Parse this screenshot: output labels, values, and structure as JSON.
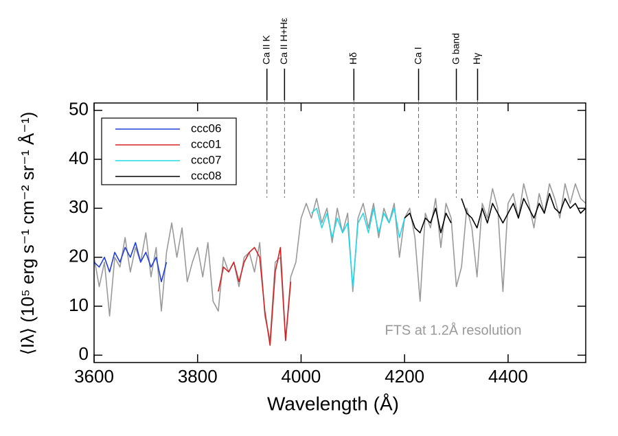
{
  "chart_data": {
    "type": "line",
    "xlabel": "Wavelength (Å)",
    "ylabel": "⟨Iλ⟩ (10⁵ erg s⁻¹ cm⁻² sr⁻¹ Å⁻¹)",
    "xlim": [
      3600,
      4550
    ],
    "xticks": [
      3600,
      3800,
      4000,
      4200,
      4400
    ],
    "ylim": [
      -1.5,
      51.5
    ],
    "yticks": [
      0,
      10,
      20,
      30,
      40,
      50
    ],
    "legend": "upper left",
    "note": "FTS at 1.2Å resolution",
    "lines": [
      {
        "label": "Ca II K",
        "x": 3934
      },
      {
        "label": "Ca II H+Hε",
        "x": 3968
      },
      {
        "label": "Hδ",
        "x": 4102
      },
      {
        "label": "Ca I",
        "x": 4227
      },
      {
        "label": "G band",
        "x": 4300
      },
      {
        "label": "Hγ",
        "x": 4341
      }
    ],
    "series": [
      {
        "color": "#999999",
        "x": [
          3600,
          3610,
          3620,
          3630,
          3640,
          3650,
          3660,
          3670,
          3680,
          3690,
          3700,
          3710,
          3720,
          3730,
          3740,
          3750,
          3760,
          3770,
          3780,
          3790,
          3800,
          3810,
          3820,
          3830,
          3840,
          3850,
          3860,
          3870,
          3880,
          3890,
          3900,
          3910,
          3920,
          3930,
          3940,
          3950,
          3960,
          3970,
          3980,
          3990,
          4000,
          4010,
          4020,
          4030,
          4040,
          4050,
          4060,
          4070,
          4080,
          4090,
          4100,
          4110,
          4120,
          4130,
          4140,
          4150,
          4160,
          4170,
          4180,
          4190,
          4200,
          4210,
          4220,
          4230,
          4240,
          4250,
          4260,
          4270,
          4280,
          4290,
          4300,
          4310,
          4320,
          4330,
          4340,
          4350,
          4360,
          4370,
          4380,
          4390,
          4400,
          4410,
          4420,
          4430,
          4440,
          4450,
          4460,
          4470,
          4480,
          4490,
          4500,
          4510,
          4520,
          4530,
          4540,
          4550
        ],
        "values": [
          20,
          14,
          19,
          8,
          20,
          18,
          24,
          17,
          22,
          19,
          25,
          16,
          22,
          9,
          21,
          27,
          20,
          26,
          15,
          19,
          22,
          16,
          23,
          11,
          9,
          20,
          17,
          19,
          14,
          20,
          21,
          17,
          23,
          8,
          3,
          19,
          20,
          3,
          16,
          19,
          28,
          31,
          28,
          32,
          27,
          30,
          23,
          30,
          25,
          29,
          13,
          28,
          31,
          26,
          31,
          24,
          30,
          27,
          31,
          20,
          28,
          30,
          24,
          11,
          29,
          26,
          32,
          22,
          31,
          28,
          14,
          18,
          30,
          26,
          16,
          31,
          28,
          34,
          30,
          13,
          31,
          33,
          28,
          35,
          31,
          26,
          33,
          29,
          35,
          32,
          28,
          35,
          31,
          35,
          32,
          31
        ]
      },
      {
        "name": "ccc06",
        "color": "#1f3fd6",
        "x": [
          3600,
          3610,
          3620,
          3630,
          3640,
          3650,
          3660,
          3670,
          3680,
          3690,
          3700,
          3710,
          3720,
          3730,
          3740
        ],
        "values": [
          19,
          18,
          20,
          17,
          21,
          19,
          22,
          20,
          23,
          19,
          21,
          18,
          20,
          15,
          19
        ]
      },
      {
        "name": "ccc01",
        "color": "#d62020",
        "x": [
          3840,
          3850,
          3860,
          3870,
          3880,
          3890,
          3900,
          3910,
          3920,
          3930,
          3940,
          3950,
          3960,
          3970,
          3980
        ],
        "values": [
          13,
          18,
          17,
          19,
          15,
          19,
          21,
          22,
          20,
          9,
          2,
          17,
          22,
          3,
          15
        ]
      },
      {
        "name": "ccc07",
        "color": "#22d8e8",
        "x": [
          4020,
          4030,
          4040,
          4050,
          4060,
          4070,
          4080,
          4090,
          4100,
          4110,
          4120,
          4130,
          4140,
          4150,
          4160,
          4170,
          4180,
          4190,
          4200
        ],
        "values": [
          29,
          30,
          26,
          29,
          24,
          28,
          25,
          27,
          14,
          27,
          29,
          25,
          30,
          25,
          29,
          27,
          30,
          24,
          28
        ]
      },
      {
        "name": "ccc08",
        "color": "#000000",
        "x": [
          4200,
          4210,
          4220,
          4230,
          4240,
          4250,
          4260,
          4270,
          4280,
          4290,
          4300,
          4310,
          4320,
          4330,
          4340,
          4350,
          4360,
          4370,
          4380,
          4390,
          4400,
          4410,
          4420,
          4430,
          4440,
          4450,
          4460,
          4470,
          4480,
          4490,
          4500,
          4510,
          4520,
          4530,
          4540,
          4550
        ],
        "values": [
          28,
          29,
          26,
          25,
          28,
          27,
          30,
          25,
          29,
          27,
          null,
          32,
          29,
          28,
          26,
          30,
          27,
          31,
          29,
          27,
          29,
          31,
          28,
          32,
          30,
          28,
          31,
          29,
          33,
          30,
          29,
          32,
          30,
          31,
          29,
          30
        ]
      }
    ]
  }
}
